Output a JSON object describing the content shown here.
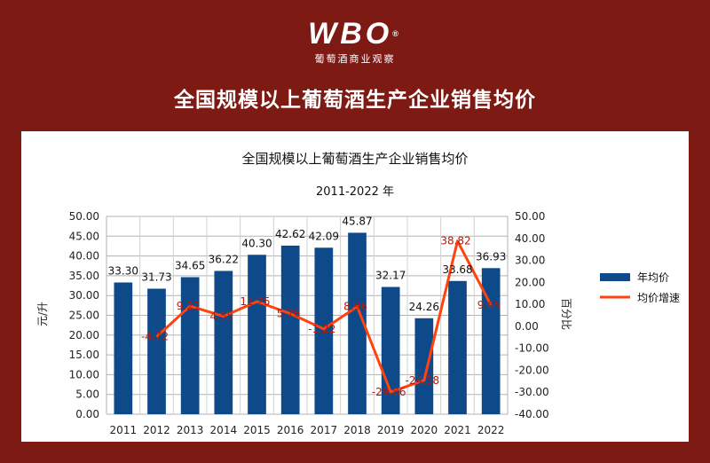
{
  "header": {
    "logo_text": "WBO",
    "logo_mark": "®",
    "logo_subtitle": "葡萄酒商业观察",
    "page_title": "全国规模以上葡萄酒生产企业销售均价"
  },
  "chart_data": {
    "type": "bar",
    "title": "全国规模以上葡萄酒生产企业销售均价",
    "subtitle": "2011-2022 年",
    "categories": [
      "2011",
      "2012",
      "2013",
      "2014",
      "2015",
      "2016",
      "2017",
      "2018",
      "2019",
      "2020",
      "2021",
      "2022"
    ],
    "ylabel": "元/升",
    "y2label": "百分比",
    "ylim": [
      0,
      50
    ],
    "y2lim": [
      -40,
      50
    ],
    "yticks": [
      "0.00",
      "5.00",
      "10.00",
      "15.00",
      "20.00",
      "25.00",
      "30.00",
      "35.00",
      "40.00",
      "45.00",
      "50.00"
    ],
    "y2ticks": [
      "-40.00",
      "-30.00",
      "-20.00",
      "-10.00",
      "0.00",
      "10.00",
      "20.00",
      "30.00",
      "40.00",
      "50.00"
    ],
    "grid": true,
    "legend_position": "right",
    "series": [
      {
        "name": "年均价",
        "type": "bar",
        "axis": "left",
        "color": "#0e4a8a",
        "values": [
          33.3,
          31.73,
          34.65,
          36.22,
          40.3,
          42.62,
          42.09,
          45.87,
          32.17,
          24.26,
          33.68,
          36.93
        ],
        "labels": [
          "33.30",
          "31.73",
          "34.65",
          "36.22",
          "40.30",
          "42.62",
          "42.09",
          "45.87",
          "32.17",
          "24.26",
          "33.68",
          "36.93"
        ]
      },
      {
        "name": "均价增速",
        "type": "line",
        "axis": "right",
        "color": "#ff420e",
        "values": [
          null,
          -4.72,
          9.21,
          4.55,
          11.25,
          5.76,
          -1.22,
          8.96,
          -29.86,
          -24.58,
          38.82,
          9.65
        ],
        "labels": [
          "",
          "-4.72",
          "9.21",
          "4.55",
          "11.25",
          "5.76",
          "-1.22",
          "8.96",
          "-29.86",
          "-24.58",
          "38.82",
          "9.65"
        ]
      }
    ]
  }
}
